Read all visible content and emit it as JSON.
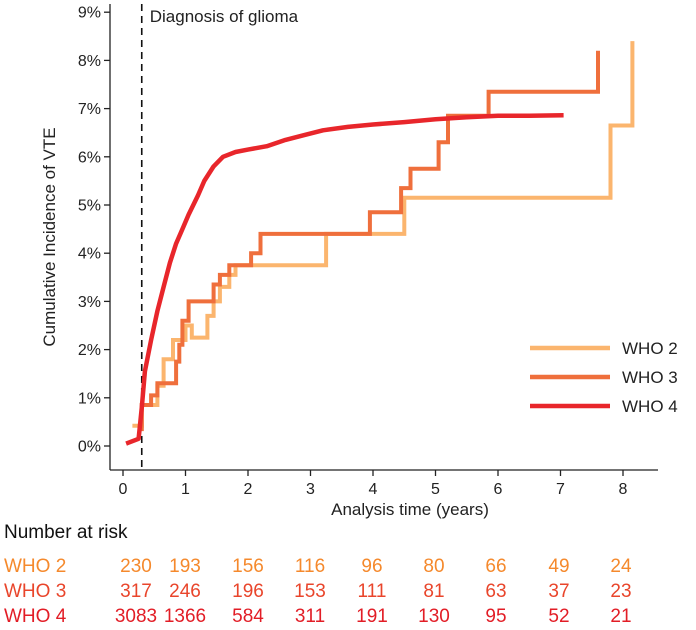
{
  "chart_data": {
    "type": "line",
    "title": "",
    "xlabel": "Analysis time (years)",
    "ylabel": "Cumulative Incidence of VTE",
    "xlim": [
      -0.2,
      8.7
    ],
    "ylim": [
      -0.15,
      9.0
    ],
    "x_ticks": [
      0,
      1,
      2,
      3,
      4,
      5,
      6,
      7,
      8
    ],
    "x_tick_labels": [
      "0",
      "1",
      "2",
      "3",
      "4",
      "5",
      "6",
      "7",
      "8"
    ],
    "y_ticks": [
      0,
      1,
      2,
      3,
      4,
      5,
      6,
      7,
      8,
      9
    ],
    "y_tick_labels": [
      "0%",
      "1%",
      "2%",
      "3%",
      "4%",
      "5%",
      "6%",
      "7%",
      "8%",
      "9%"
    ],
    "grid": false,
    "legend_position": "bottom-right",
    "annotation": {
      "text": "Diagnosis of glioma",
      "x": 0.3
    },
    "series": [
      {
        "name": "WHO 2",
        "color": "#fbb56e",
        "width": 4,
        "step": true,
        "points": [
          [
            0.15,
            0.42
          ],
          [
            0.3,
            0.42
          ],
          [
            0.3,
            0.85
          ],
          [
            0.55,
            0.85
          ],
          [
            0.55,
            1.25
          ],
          [
            0.65,
            1.25
          ],
          [
            0.65,
            1.8
          ],
          [
            0.8,
            1.8
          ],
          [
            0.8,
            2.2
          ],
          [
            1.0,
            2.2
          ],
          [
            1.0,
            2.5
          ],
          [
            1.1,
            2.5
          ],
          [
            1.1,
            2.25
          ],
          [
            1.35,
            2.25
          ],
          [
            1.35,
            2.7
          ],
          [
            1.45,
            2.7
          ],
          [
            1.45,
            3.0
          ],
          [
            1.55,
            3.0
          ],
          [
            1.55,
            3.3
          ],
          [
            1.7,
            3.3
          ],
          [
            1.7,
            3.55
          ],
          [
            1.8,
            3.55
          ],
          [
            1.8,
            3.75
          ],
          [
            3.25,
            3.75
          ],
          [
            3.25,
            4.4
          ],
          [
            4.5,
            4.4
          ],
          [
            4.5,
            5.15
          ],
          [
            7.8,
            5.15
          ],
          [
            7.8,
            6.65
          ],
          [
            8.15,
            6.65
          ],
          [
            8.15,
            8.4
          ]
        ]
      },
      {
        "name": "WHO 3",
        "color": "#ef6f3c",
        "width": 4,
        "step": true,
        "points": [
          [
            0.28,
            0.35
          ],
          [
            0.3,
            0.35
          ],
          [
            0.3,
            0.85
          ],
          [
            0.45,
            0.85
          ],
          [
            0.45,
            1.05
          ],
          [
            0.55,
            1.05
          ],
          [
            0.55,
            1.3
          ],
          [
            0.85,
            1.3
          ],
          [
            0.85,
            1.75
          ],
          [
            0.9,
            1.75
          ],
          [
            0.9,
            2.1
          ],
          [
            0.95,
            2.1
          ],
          [
            0.95,
            2.6
          ],
          [
            1.05,
            2.6
          ],
          [
            1.05,
            3.0
          ],
          [
            1.45,
            3.0
          ],
          [
            1.45,
            3.35
          ],
          [
            1.55,
            3.35
          ],
          [
            1.55,
            3.55
          ],
          [
            1.7,
            3.55
          ],
          [
            1.7,
            3.75
          ],
          [
            2.05,
            3.75
          ],
          [
            2.05,
            4.0
          ],
          [
            2.2,
            4.0
          ],
          [
            2.2,
            4.4
          ],
          [
            3.95,
            4.4
          ],
          [
            3.95,
            4.85
          ],
          [
            4.45,
            4.85
          ],
          [
            4.45,
            5.35
          ],
          [
            4.6,
            5.35
          ],
          [
            4.6,
            5.75
          ],
          [
            5.05,
            5.75
          ],
          [
            5.05,
            6.3
          ],
          [
            5.2,
            6.3
          ],
          [
            5.2,
            6.85
          ],
          [
            5.85,
            6.85
          ],
          [
            5.85,
            7.35
          ],
          [
            7.6,
            7.35
          ],
          [
            7.6,
            8.2
          ]
        ]
      },
      {
        "name": "WHO 4",
        "color": "#e8262b",
        "width": 4.5,
        "step": false,
        "points": [
          [
            0.05,
            0.05
          ],
          [
            0.15,
            0.1
          ],
          [
            0.25,
            0.15
          ],
          [
            0.3,
            0.8
          ],
          [
            0.35,
            1.55
          ],
          [
            0.45,
            2.2
          ],
          [
            0.55,
            2.8
          ],
          [
            0.65,
            3.3
          ],
          [
            0.75,
            3.8
          ],
          [
            0.85,
            4.2
          ],
          [
            0.95,
            4.5
          ],
          [
            1.05,
            4.8
          ],
          [
            1.2,
            5.2
          ],
          [
            1.3,
            5.5
          ],
          [
            1.45,
            5.8
          ],
          [
            1.6,
            6.0
          ],
          [
            1.8,
            6.1
          ],
          [
            2.0,
            6.15
          ],
          [
            2.3,
            6.22
          ],
          [
            2.6,
            6.35
          ],
          [
            2.9,
            6.45
          ],
          [
            3.2,
            6.55
          ],
          [
            3.6,
            6.62
          ],
          [
            4.0,
            6.67
          ],
          [
            4.5,
            6.72
          ],
          [
            5.0,
            6.78
          ],
          [
            5.5,
            6.82
          ],
          [
            6.0,
            6.85
          ],
          [
            6.5,
            6.85
          ],
          [
            7.05,
            6.86
          ]
        ]
      }
    ]
  },
  "risk_table": {
    "title": "Number at risk",
    "time_points": [
      0,
      1,
      2,
      3,
      4,
      5,
      6,
      7,
      8
    ],
    "rows": [
      {
        "label": "WHO 2",
        "color": "#f5892c",
        "values": [
          "230",
          "193",
          "156",
          "116",
          "96",
          "80",
          "66",
          "49",
          "24"
        ]
      },
      {
        "label": "WHO 3",
        "color": "#e9452b",
        "values": [
          "317",
          "246",
          "196",
          "153",
          "111",
          "81",
          "63",
          "37",
          "23"
        ]
      },
      {
        "label": "WHO 4",
        "color": "#e21d26",
        "values": [
          "3083",
          "1366",
          "584",
          "311",
          "191",
          "130",
          "95",
          "52",
          "21"
        ]
      }
    ]
  }
}
